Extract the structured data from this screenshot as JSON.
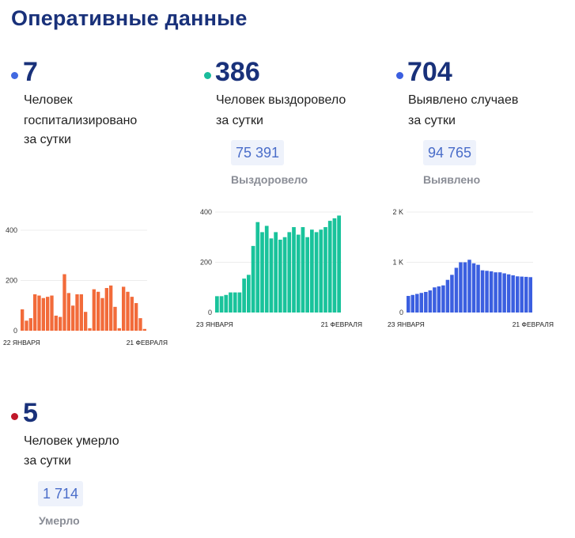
{
  "header": {
    "title": "Оперативные данные"
  },
  "colors": {
    "hospitalized": "#4169e1",
    "recovered": "#1abc9c",
    "cases": "#3b5fe0",
    "deaths": "#c0182a",
    "hospitalized_bars": "#f26b3a",
    "recovered_bars": "#19c39b",
    "cases_bars": "#3b5fe0"
  },
  "stats": {
    "hospitalized": {
      "value": "7",
      "line1": "Человек",
      "line2": "госпитализировано",
      "line3": "за сутки"
    },
    "recovered": {
      "value": "386",
      "line1": "Человек выздоровело",
      "line2": "за сутки",
      "total": "75 391",
      "total_label": "Выздоровело"
    },
    "cases": {
      "value": "704",
      "line1": "Выявлено случаев",
      "line2": "за сутки",
      "total": "94 765",
      "total_label": "Выявлено"
    },
    "deaths": {
      "value": "5",
      "line1": "Человек умерло",
      "line2": "за сутки",
      "total": "1 714",
      "total_label": "Умерло"
    }
  },
  "chart_data": [
    {
      "id": "hospitalized",
      "type": "bar",
      "x_start_label": "22 ЯНВАРЯ",
      "x_end_label": "21 ФЕВРАЛЯ",
      "yticks": [
        "0",
        "200",
        "400"
      ],
      "ytick_values": [
        0,
        200,
        400
      ],
      "ylim": [
        0,
        400
      ],
      "values": [
        85,
        40,
        50,
        145,
        140,
        130,
        135,
        140,
        60,
        55,
        225,
        150,
        100,
        145,
        145,
        75,
        10,
        165,
        155,
        130,
        170,
        180,
        95,
        10,
        175,
        155,
        135,
        110,
        50,
        7
      ]
    },
    {
      "id": "recovered",
      "type": "bar",
      "x_start_label": "23 ЯНВАРЯ",
      "x_end_label": "21 ФЕВРАЛЯ",
      "yticks": [
        "0",
        "200",
        "400"
      ],
      "ytick_values": [
        0,
        200,
        400
      ],
      "ylim": [
        0,
        400
      ],
      "values": [
        65,
        65,
        70,
        80,
        80,
        80,
        135,
        150,
        265,
        360,
        320,
        345,
        295,
        320,
        290,
        300,
        320,
        340,
        310,
        340,
        300,
        330,
        320,
        330,
        340,
        365,
        375,
        386
      ]
    },
    {
      "id": "cases",
      "type": "bar",
      "x_start_label": "23 ЯНВАРЯ",
      "x_end_label": "21 ФЕВРАЛЯ",
      "yticks": [
        "0",
        "1 K",
        "2 K"
      ],
      "ytick_values": [
        0,
        1000,
        2000
      ],
      "ylim": [
        0,
        2000
      ],
      "values": [
        330,
        350,
        370,
        390,
        410,
        440,
        500,
        520,
        540,
        650,
        750,
        890,
        1000,
        1000,
        1050,
        980,
        950,
        840,
        830,
        820,
        800,
        800,
        780,
        760,
        740,
        720,
        715,
        710,
        704
      ]
    }
  ]
}
